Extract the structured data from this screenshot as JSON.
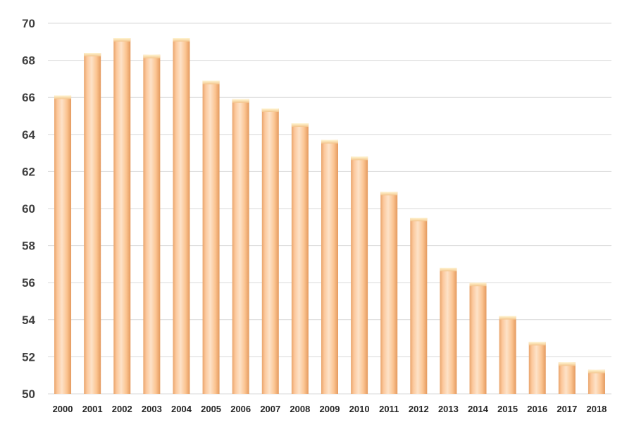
{
  "chart_data": {
    "type": "bar",
    "title": "",
    "xlabel": "",
    "ylabel": "",
    "categories": [
      "2000",
      "2001",
      "2002",
      "2003",
      "2004",
      "2005",
      "2006",
      "2007",
      "2008",
      "2009",
      "2010",
      "2011",
      "2012",
      "2013",
      "2014",
      "2015",
      "2016",
      "2017",
      "2018"
    ],
    "values": [
      66.1,
      68.4,
      69.2,
      68.3,
      69.2,
      66.9,
      65.9,
      65.4,
      64.6,
      63.7,
      62.8,
      60.9,
      59.5,
      56.8,
      56.0,
      54.2,
      52.8,
      51.7,
      51.3
    ],
    "ylim": [
      50,
      70
    ],
    "yticks": [
      "50",
      "52",
      "54",
      "56",
      "58",
      "60",
      "62",
      "64",
      "66",
      "68",
      "70"
    ],
    "grid": true,
    "legend": "none",
    "colors": {
      "bar_fill": "#fac090",
      "bar_highlight": "#fde4cc",
      "bar_shadow": "#e0a06a",
      "bar_top": "#fff2c0",
      "grid": "#d9d9d9"
    }
  }
}
